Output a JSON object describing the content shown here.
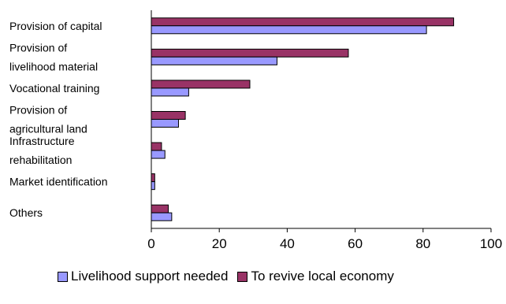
{
  "chart_data": {
    "type": "bar",
    "orientation": "horizontal",
    "categories": [
      [
        "Provision of capital"
      ],
      [
        "Provision of",
        "livelihood material"
      ],
      [
        "Vocational training"
      ],
      [
        "Provision of",
        "agricultural land"
      ],
      [
        "Infrastructure",
        "rehabilitation"
      ],
      [
        "Market identification"
      ],
      [
        "Others"
      ]
    ],
    "series": [
      {
        "name": "Livelihood support needed",
        "color": "#9999ff",
        "values": [
          81,
          37,
          11,
          8,
          4,
          1,
          6
        ]
      },
      {
        "name": "To revive local economy",
        "color": "#993366",
        "values": [
          89,
          58,
          29,
          10,
          3,
          1,
          5
        ]
      }
    ],
    "xlim": [
      0,
      100
    ],
    "xticks": [
      0,
      20,
      40,
      60,
      80,
      100
    ],
    "grid": false,
    "legend_position": "bottom"
  }
}
